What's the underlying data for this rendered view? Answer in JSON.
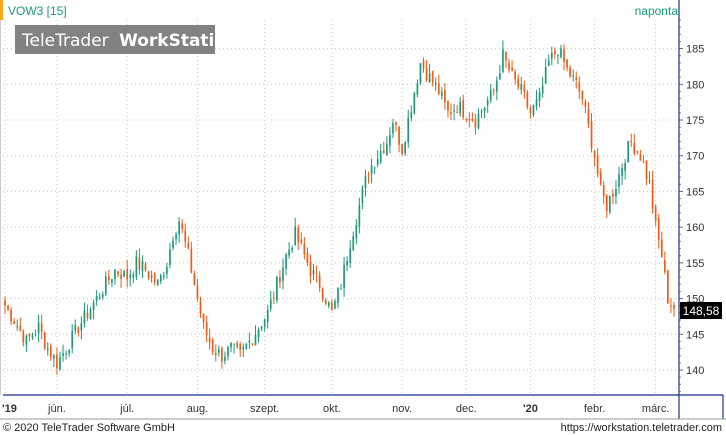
{
  "header": {
    "symbol": "VOW3 [15]",
    "interval": "naponta"
  },
  "watermark": {
    "brand": "TeleTrader",
    "product": "WorkStation"
  },
  "footer": {
    "copyright": "© 2020 TeleTrader Software GmbH",
    "url": "https://workstation.teletrader.com"
  },
  "last_price": {
    "label": "148,58",
    "value": 148.58
  },
  "colors": {
    "up": "#1a9a7a",
    "down": "#f05a14",
    "accent": "#f7a81b",
    "axis_blue": "#1f2f8f",
    "grid": "#c8c8c8",
    "header_text": "#1a9a7a"
  },
  "chart_data": {
    "type": "candlestick",
    "title": "VOW3 [15]",
    "interval": "naponta",
    "grid": true,
    "y_axis_position": "right",
    "ylim": [
      136.5,
      189
    ],
    "y_ticks": [
      140,
      145,
      150,
      155,
      160,
      165,
      170,
      175,
      180,
      185
    ],
    "y_tick_labels": [
      "140",
      "145",
      "150",
      "155",
      "160",
      "165",
      "170",
      "175",
      "180",
      "185"
    ],
    "x_ticks": [
      {
        "label": "'19",
        "day": 0,
        "bold": true
      },
      {
        "label": "jún.",
        "day": 17,
        "bold": false
      },
      {
        "label": "júl.",
        "day": 40,
        "bold": false
      },
      {
        "label": "aug.",
        "day": 63,
        "bold": false
      },
      {
        "label": "szept.",
        "day": 85,
        "bold": false
      },
      {
        "label": "okt.",
        "day": 107,
        "bold": false
      },
      {
        "label": "nov.",
        "day": 130,
        "bold": false
      },
      {
        "label": "dec.",
        "day": 151,
        "bold": false
      },
      {
        "label": "'20",
        "day": 172,
        "bold": true
      },
      {
        "label": "febr.",
        "day": 193,
        "bold": false
      },
      {
        "label": "márc.",
        "day": 213,
        "bold": false
      }
    ],
    "anchors": [
      {
        "day": 0,
        "close": 149
      },
      {
        "day": 3,
        "close": 147
      },
      {
        "day": 7,
        "close": 144
      },
      {
        "day": 11,
        "close": 146
      },
      {
        "day": 14,
        "close": 143
      },
      {
        "day": 17,
        "close": 141
      },
      {
        "day": 20,
        "close": 143
      },
      {
        "day": 24,
        "close": 146
      },
      {
        "day": 27,
        "close": 148
      },
      {
        "day": 30,
        "close": 150
      },
      {
        "day": 33,
        "close": 152
      },
      {
        "day": 36,
        "close": 154
      },
      {
        "day": 40,
        "close": 153
      },
      {
        "day": 43,
        "close": 155
      },
      {
        "day": 46,
        "close": 154
      },
      {
        "day": 50,
        "close": 152
      },
      {
        "day": 53,
        "close": 155
      },
      {
        "day": 55,
        "close": 159
      },
      {
        "day": 57,
        "close": 161
      },
      {
        "day": 60,
        "close": 156
      },
      {
        "day": 63,
        "close": 150
      },
      {
        "day": 65,
        "close": 146
      },
      {
        "day": 68,
        "close": 143
      },
      {
        "day": 71,
        "close": 142
      },
      {
        "day": 74,
        "close": 143
      },
      {
        "day": 77,
        "close": 142
      },
      {
        "day": 80,
        "close": 144
      },
      {
        "day": 83,
        "close": 146
      },
      {
        "day": 86,
        "close": 148
      },
      {
        "day": 89,
        "close": 152
      },
      {
        "day": 92,
        "close": 156
      },
      {
        "day": 95,
        "close": 159
      },
      {
        "day": 97,
        "close": 157
      },
      {
        "day": 100,
        "close": 154
      },
      {
        "day": 103,
        "close": 152
      },
      {
        "day": 105,
        "close": 150
      },
      {
        "day": 107,
        "close": 148
      },
      {
        "day": 110,
        "close": 152
      },
      {
        "day": 113,
        "close": 158
      },
      {
        "day": 116,
        "close": 163
      },
      {
        "day": 119,
        "close": 168
      },
      {
        "day": 122,
        "close": 170
      },
      {
        "day": 125,
        "close": 172
      },
      {
        "day": 127,
        "close": 175
      },
      {
        "day": 130,
        "close": 171
      },
      {
        "day": 133,
        "close": 177
      },
      {
        "day": 136,
        "close": 183
      },
      {
        "day": 139,
        "close": 181
      },
      {
        "day": 142,
        "close": 179
      },
      {
        "day": 145,
        "close": 176
      },
      {
        "day": 148,
        "close": 177
      },
      {
        "day": 151,
        "close": 176
      },
      {
        "day": 154,
        "close": 175
      },
      {
        "day": 157,
        "close": 177
      },
      {
        "day": 160,
        "close": 179
      },
      {
        "day": 163,
        "close": 184
      },
      {
        "day": 166,
        "close": 181
      },
      {
        "day": 169,
        "close": 179
      },
      {
        "day": 172,
        "close": 176
      },
      {
        "day": 175,
        "close": 178
      },
      {
        "day": 178,
        "close": 183
      },
      {
        "day": 181,
        "close": 185
      },
      {
        "day": 184,
        "close": 182
      },
      {
        "day": 187,
        "close": 180
      },
      {
        "day": 189,
        "close": 178
      },
      {
        "day": 191,
        "close": 174
      },
      {
        "day": 193,
        "close": 170
      },
      {
        "day": 195,
        "close": 165
      },
      {
        "day": 197,
        "close": 163
      },
      {
        "day": 200,
        "close": 166
      },
      {
        "day": 203,
        "close": 170
      },
      {
        "day": 205,
        "close": 172
      },
      {
        "day": 208,
        "close": 170
      },
      {
        "day": 211,
        "close": 166
      },
      {
        "day": 213,
        "close": 160
      },
      {
        "day": 215,
        "close": 156
      },
      {
        "day": 217,
        "close": 150
      },
      {
        "day": 219,
        "close": 148.58
      }
    ]
  }
}
